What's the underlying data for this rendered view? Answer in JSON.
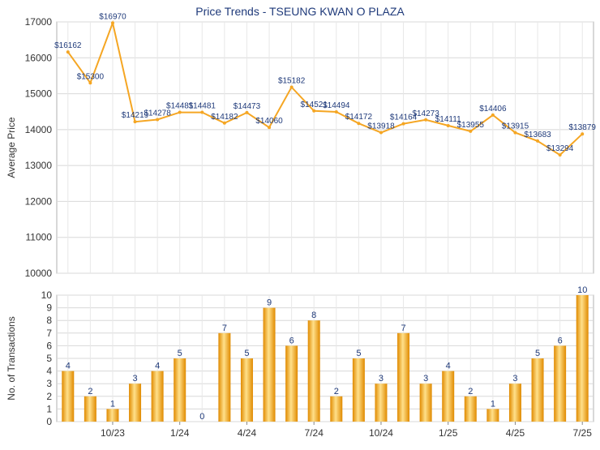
{
  "chart_data": [
    {
      "type": "line",
      "title": "Price Trends - TSEUNG KWAN O PLAZA",
      "ylabel": "Average Price",
      "ylim": [
        10000,
        17000
      ],
      "yticks": [
        10000,
        11000,
        12000,
        13000,
        14000,
        15000,
        16000,
        17000
      ],
      "grid": true,
      "color": "#f5a623",
      "series": [
        {
          "values": [
            16162,
            15300,
            16970,
            14219,
            14278,
            14481,
            14481,
            14182,
            14473,
            14060,
            15182,
            14521,
            14494,
            14172,
            13918,
            14164,
            14273,
            14111,
            13955,
            14406,
            13915,
            13683,
            13294,
            13879
          ],
          "labels": [
            "$16162",
            "$15300",
            "$16970",
            "$14219",
            "$14278",
            "$14481",
            "$14481",
            "$14182",
            "$14473",
            "$14060",
            "$15182",
            "$14521",
            "$14494",
            "$14172",
            "$13918",
            "$14164",
            "$14273",
            "$14111",
            "$13955",
            "$14406",
            "$13915",
            "$13683",
            "$13294",
            "$13879"
          ]
        }
      ]
    },
    {
      "type": "bar",
      "ylabel": "No. of Transactions",
      "ylim": [
        0,
        10
      ],
      "yticks": [
        0,
        1,
        2,
        3,
        4,
        5,
        6,
        7,
        8,
        9,
        10
      ],
      "grid": true,
      "color": "#f5a623",
      "values": [
        4,
        2,
        1,
        3,
        4,
        5,
        0,
        7,
        5,
        9,
        6,
        8,
        2,
        5,
        3,
        7,
        3,
        4,
        2,
        1,
        3,
        5,
        6,
        10
      ],
      "xticks": [
        {
          "index": 2,
          "label": "10/23"
        },
        {
          "index": 5,
          "label": "1/24"
        },
        {
          "index": 8,
          "label": "4/24"
        },
        {
          "index": 11,
          "label": "7/24"
        },
        {
          "index": 14,
          "label": "10/24"
        },
        {
          "index": 17,
          "label": "1/25"
        },
        {
          "index": 20,
          "label": "4/25"
        },
        {
          "index": 23,
          "label": "7/25"
        }
      ]
    }
  ]
}
